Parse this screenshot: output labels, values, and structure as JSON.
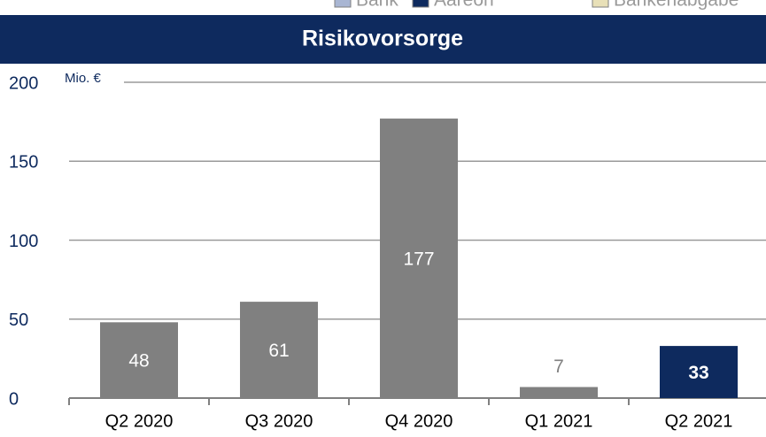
{
  "legend": [
    {
      "name": "Bank",
      "color": "#a9b6d3"
    },
    {
      "name": "Aareon",
      "color": "#0e2a5e"
    },
    {
      "name": "Bankenabgabe",
      "color": "#e8e0b8"
    }
  ],
  "chart_data": {
    "type": "bar",
    "title": "Risikovorsorge",
    "unit_label": "Mio. €",
    "categories": [
      "Q2 2020",
      "Q3 2020",
      "Q4 2020",
      "Q1 2021",
      "Q2 2021"
    ],
    "values": [
      48,
      61,
      177,
      7,
      33
    ],
    "colors": [
      "#808080",
      "#808080",
      "#808080",
      "#808080",
      "#0e2a5e"
    ],
    "value_label_weights": [
      "normal",
      "normal",
      "normal",
      "normal",
      "bold"
    ],
    "ylim": [
      0,
      200
    ],
    "yticks": [
      0,
      50,
      100,
      150,
      200
    ],
    "grid": true
  }
}
